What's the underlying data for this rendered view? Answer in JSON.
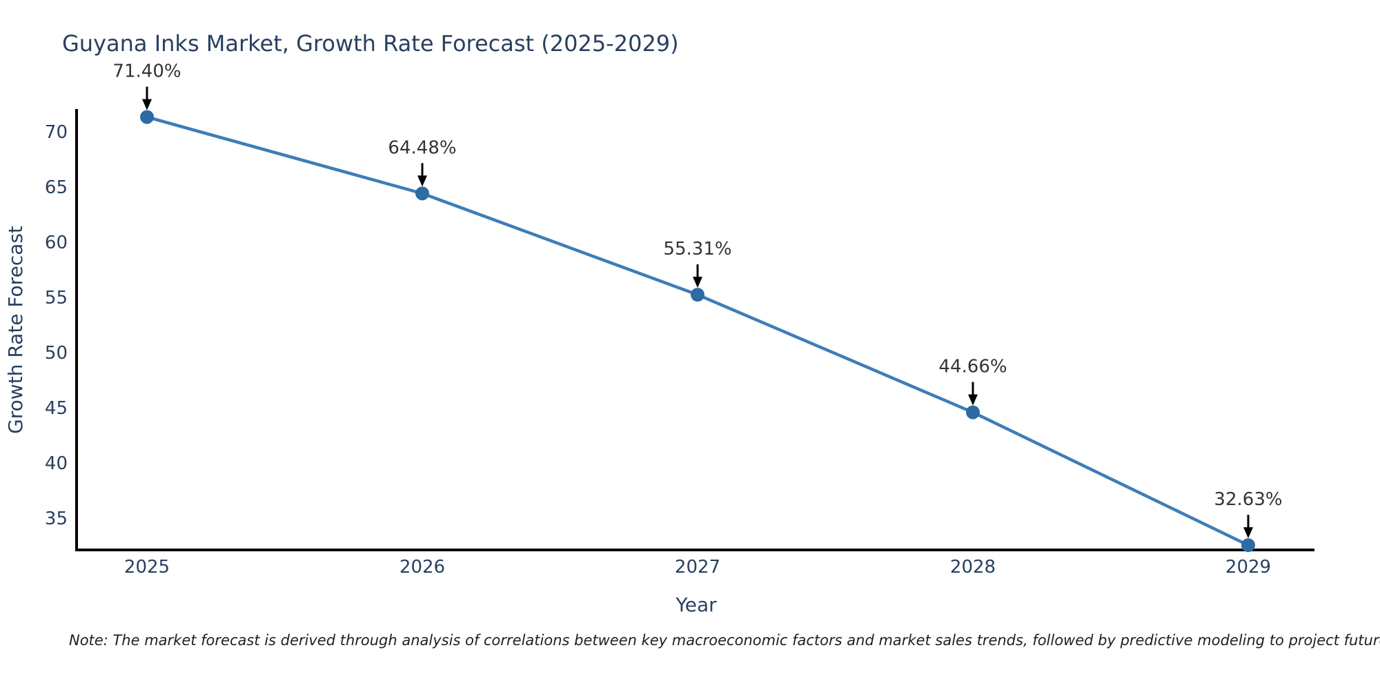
{
  "title": "Guyana Inks Market, Growth Rate Forecast (2025-2029)",
  "note": "Note: The market forecast is derived through analysis of correlations between key macroeconomic factors and market sales trends, followed by predictive modeling to project future sales",
  "chart_data": {
    "type": "line",
    "title": "Guyana Inks Market, Growth Rate Forecast (2025-2029)",
    "categories": [
      "2025",
      "2026",
      "2027",
      "2028",
      "2029"
    ],
    "values": [
      71.4,
      64.48,
      55.31,
      44.66,
      32.63
    ],
    "point_labels": [
      "71.40%",
      "64.48%",
      "55.31%",
      "44.66%",
      "32.63%"
    ],
    "series_name": "Growth Rate Forecast",
    "xlabel": "Year",
    "ylabel": "Growth Rate Forecast",
    "ylim": [
      32.2,
      72.0
    ],
    "yticks": [
      35,
      40,
      45,
      50,
      55,
      60,
      65,
      70
    ],
    "grid": false,
    "legend_position": "none",
    "colors": {
      "line": "#3e7db8",
      "marker": "#2e6ba4",
      "axis": "#000000",
      "axis_text": "#2a3f5f",
      "label_text": "#333333",
      "arrow": "#000000",
      "background": "#ffffff"
    }
  }
}
